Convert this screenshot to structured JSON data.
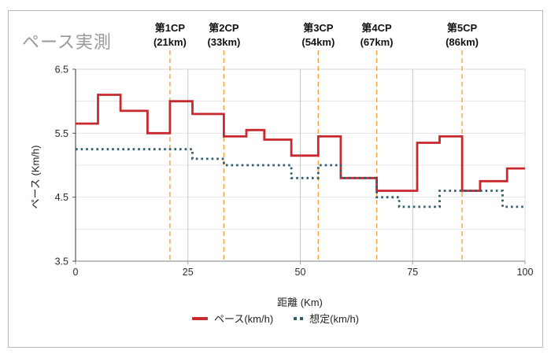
{
  "window": {
    "background": "#ffffff",
    "border_color": "#b8b8b8"
  },
  "chart_data": {
    "type": "step-line",
    "title": "ペース実測",
    "title_color": "#999999",
    "xlabel": "距離 (Km)",
    "ylabel": "ペース (Km/h)",
    "xlim": [
      0,
      100
    ],
    "ylim": [
      3.5,
      6.5
    ],
    "x_ticks": [
      0,
      25,
      50,
      75,
      100
    ],
    "y_ticks": [
      6.5,
      5.5,
      4.5,
      3.5
    ],
    "grid": true,
    "grid_step_y": 0.5,
    "legend_position": "bottom-center",
    "cp_line_color": "#f2a43c",
    "checkpoints": [
      {
        "label": "第1CP",
        "sub": "(21km)",
        "km": 21
      },
      {
        "label": "第2CP",
        "sub": "(33km)",
        "km": 33
      },
      {
        "label": "第3CP",
        "sub": "(54km)",
        "km": 54
      },
      {
        "label": "第4CP",
        "sub": "(67km)",
        "km": 67
      },
      {
        "label": "第5CP",
        "sub": "(86km)",
        "km": 86
      }
    ],
    "series": [
      {
        "name": "ペース(km/h)",
        "style": "solid",
        "color": "#c8292e",
        "steps": [
          [
            0,
            5.65
          ],
          [
            5,
            6.1
          ],
          [
            10,
            5.85
          ],
          [
            16,
            5.5
          ],
          [
            21,
            6.0
          ],
          [
            26,
            5.8
          ],
          [
            33,
            5.45
          ],
          [
            38,
            5.55
          ],
          [
            42,
            5.4
          ],
          [
            48,
            5.15
          ],
          [
            54,
            5.45
          ],
          [
            59,
            4.8
          ],
          [
            67,
            4.6
          ],
          [
            76,
            5.35
          ],
          [
            81,
            5.45
          ],
          [
            86,
            4.6
          ],
          [
            90,
            4.75
          ],
          [
            96,
            4.95
          ]
        ]
      },
      {
        "name": "想定(km/h)",
        "style": "dotted",
        "color": "#2d5d6e",
        "steps": [
          [
            0,
            5.25
          ],
          [
            26,
            5.1
          ],
          [
            33,
            5.0
          ],
          [
            48,
            4.8
          ],
          [
            54,
            5.0
          ],
          [
            59,
            4.8
          ],
          [
            67,
            4.5
          ],
          [
            72,
            4.35
          ],
          [
            81,
            4.6
          ],
          [
            95,
            4.35
          ]
        ]
      }
    ]
  }
}
